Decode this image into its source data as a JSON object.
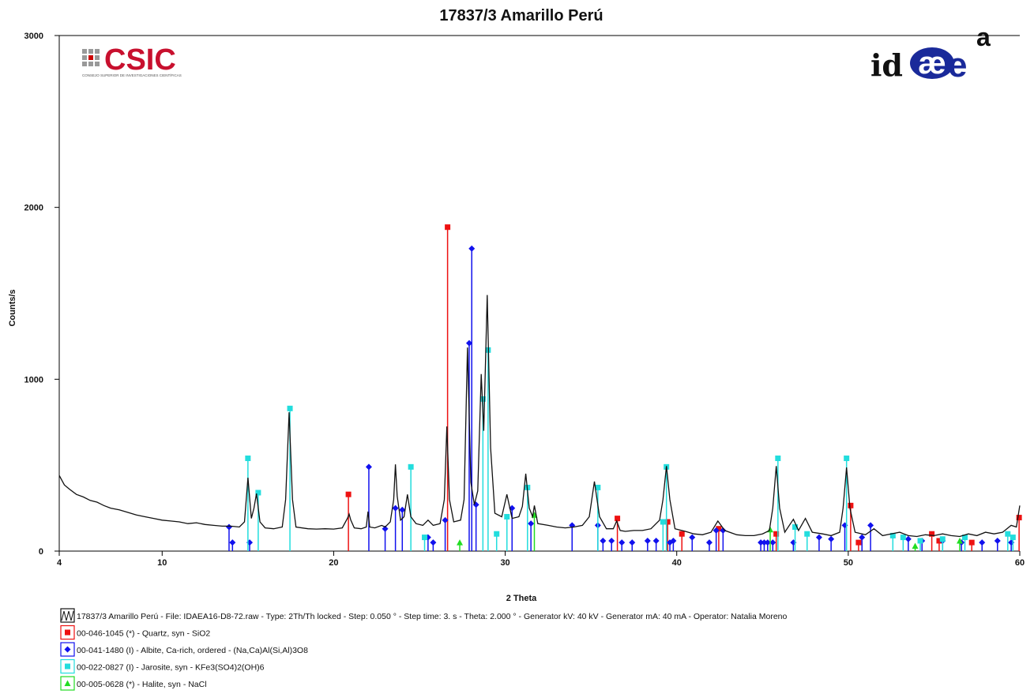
{
  "chart_data": {
    "type": "line",
    "title": "17837/3 Amarillo Perú",
    "x_label": "2 Theta",
    "y_label": "Counts/s",
    "logos": {
      "csic": "CSIC",
      "csic_subtitle": "CONSEJO SUPERIOR DE INVESTIGACIONES CIENTÍFICAS",
      "idaea_id": "id",
      "idaea_ae": "æ",
      "idaea_e": "e",
      "idaea_a": "a"
    },
    "xlim": [
      4,
      60
    ],
    "xticks": [
      4,
      10,
      20,
      30,
      40,
      50,
      60
    ],
    "ylim": [
      0,
      3000
    ],
    "yticks": [
      0,
      1000,
      2000,
      3000
    ],
    "series": [
      {
        "name": "17837/3 Amarillo Perú - File: IDAEA16-D8-72.raw - Type: 2Th/Th locked - Step: 0.050 ° - Step time: 3. s - Theta: 2.000 ° - Generator kV: 40 kV - Generator mA: 40 mA - Operator: Natalia Moreno",
        "color": "#111111",
        "type": "line",
        "x": [
          4,
          4.3,
          4.6,
          5,
          5.4,
          5.8,
          6.2,
          6.6,
          7,
          7.5,
          8,
          8.5,
          9,
          9.5,
          10,
          10.5,
          11,
          11.5,
          12,
          12.5,
          13,
          13.5,
          14,
          14.5,
          14.8,
          15,
          15.2,
          15.35,
          15.5,
          15.7,
          16,
          16.5,
          17,
          17.2,
          17.4,
          17.6,
          17.8,
          18.5,
          19,
          19.5,
          20,
          20.5,
          20.8,
          20.9,
          21,
          21.2,
          21.6,
          21.9,
          22,
          22.1,
          22.4,
          22.8,
          23,
          23.3,
          23.5,
          23.6,
          23.7,
          23.9,
          24.1,
          24.3,
          24.5,
          24.8,
          25.2,
          25.5,
          25.8,
          26.2,
          26.45,
          26.6,
          26.75,
          27,
          27.4,
          27.6,
          27.8,
          28,
          28.2,
          28.4,
          28.6,
          28.75,
          28.95,
          29.15,
          29.4,
          29.8,
          30.1,
          30.4,
          30.8,
          31,
          31.2,
          31.4,
          31.6,
          31.7,
          31.9,
          32.5,
          33,
          33.5,
          34,
          34.5,
          34.9,
          35.2,
          35.5,
          35.9,
          36.3,
          36.5,
          36.7,
          37,
          37.5,
          38,
          38.5,
          39,
          39.2,
          39.4,
          39.6,
          39.9,
          40.5,
          41,
          41.5,
          42,
          42.4,
          42.8,
          43.5,
          44,
          44.5,
          45,
          45.4,
          45.6,
          45.8,
          46,
          46.3,
          46.8,
          47.1,
          47.5,
          47.9,
          48.5,
          49,
          49.5,
          49.7,
          49.9,
          50.1,
          50.4,
          51,
          51.5,
          52,
          52.5,
          53,
          53.5,
          54,
          54.5,
          55,
          55.5,
          56,
          56.5,
          57,
          57.5,
          58,
          58.5,
          59,
          59.5,
          59.8,
          60
        ],
        "values": [
          440,
          385,
          360,
          330,
          315,
          295,
          285,
          265,
          250,
          240,
          225,
          210,
          200,
          190,
          180,
          175,
          170,
          160,
          165,
          155,
          150,
          145,
          145,
          140,
          170,
          427,
          190,
          250,
          335,
          170,
          135,
          130,
          140,
          300,
          808,
          300,
          140,
          130,
          128,
          130,
          128,
          135,
          190,
          215,
          180,
          135,
          130,
          140,
          230,
          140,
          135,
          150,
          140,
          170,
          300,
          505,
          320,
          180,
          200,
          330,
          200,
          160,
          150,
          180,
          150,
          160,
          300,
          725,
          300,
          170,
          180,
          300,
          1185,
          400,
          270,
          350,
          1030,
          700,
          1490,
          600,
          220,
          200,
          330,
          190,
          200,
          260,
          450,
          250,
          200,
          265,
          160,
          150,
          140,
          135,
          140,
          150,
          200,
          405,
          200,
          130,
          130,
          175,
          120,
          115,
          120,
          120,
          130,
          180,
          300,
          495,
          300,
          130,
          115,
          100,
          95,
          110,
          175,
          120,
          95,
          90,
          90,
          100,
          120,
          250,
          495,
          250,
          110,
          185,
          120,
          190,
          110,
          100,
          90,
          110,
          250,
          487,
          250,
          110,
          95,
          130,
          90,
          100,
          110,
          90,
          85,
          95,
          90,
          100,
          90,
          85,
          100,
          90,
          110,
          100,
          110,
          150,
          140,
          265
        ]
      },
      {
        "name": "00-046-1045 (*) - Quartz, syn - SiO2",
        "color": "#ee1111",
        "type": "stick",
        "marker": "square",
        "x": [
          20.86,
          26.64,
          36.54,
          39.47,
          40.3,
          42.45,
          45.8,
          50.14,
          50.6,
          54.87,
          55.3,
          57.2,
          59.96
        ],
        "values": [
          330,
          1885,
          190,
          170,
          100,
          130,
          100,
          265,
          50,
          100,
          60,
          50,
          195
        ]
      },
      {
        "name": "00-041-1480 (I) - Albite, Ca-rich, ordered - (Na,Ca)Al(Si,Al)3O8",
        "color": "#1111ee",
        "type": "stick",
        "marker": "diamond",
        "x": [
          13.9,
          14.1,
          15.1,
          22.05,
          23.0,
          23.6,
          24.0,
          25.5,
          25.8,
          26.5,
          27.9,
          28.05,
          28.3,
          30.4,
          31.5,
          33.9,
          35.4,
          35.7,
          36.2,
          36.8,
          37.4,
          38.3,
          38.8,
          39.6,
          39.8,
          40.9,
          41.9,
          42.3,
          42.7,
          44.9,
          45.1,
          45.3,
          45.6,
          46.8,
          48.3,
          49.0,
          49.8,
          50.8,
          51.3,
          53.5,
          54.3,
          55.5,
          56.6,
          57.8,
          58.7,
          59.5
        ],
        "values": [
          140,
          50,
          50,
          490,
          130,
          250,
          240,
          80,
          50,
          180,
          1210,
          1760,
          270,
          250,
          160,
          150,
          150,
          60,
          60,
          50,
          50,
          60,
          60,
          50,
          60,
          80,
          50,
          120,
          120,
          50,
          50,
          50,
          50,
          50,
          80,
          70,
          150,
          80,
          150,
          70,
          60,
          60,
          50,
          50,
          60,
          50
        ]
      },
      {
        "name": "00-022-0827 (I) - Jarosite, syn - KFe3(SO4)2(OH)6",
        "color": "#22dddd",
        "type": "stick",
        "marker": "square",
        "x": [
          15.0,
          15.6,
          17.45,
          24.5,
          25.3,
          28.7,
          29.0,
          29.5,
          30.1,
          31.3,
          35.4,
          39.2,
          39.4,
          45.9,
          46.9,
          47.6,
          49.9,
          52.6,
          53.2,
          54.2,
          55.5,
          56.8,
          59.3,
          59.6
        ],
        "values": [
          540,
          340,
          830,
          490,
          80,
          885,
          1170,
          100,
          200,
          370,
          370,
          170,
          490,
          540,
          140,
          100,
          540,
          90,
          80,
          60,
          70,
          80,
          100,
          80
        ]
      },
      {
        "name": "00-005-0628 (*) - Halite, syn - NaCl",
        "color": "#22dd22",
        "type": "stick",
        "marker": "triangle",
        "x": [
          27.35,
          31.7,
          45.45,
          53.9,
          56.5
        ],
        "values": [
          50,
          210,
          125,
          30,
          60
        ]
      }
    ]
  }
}
